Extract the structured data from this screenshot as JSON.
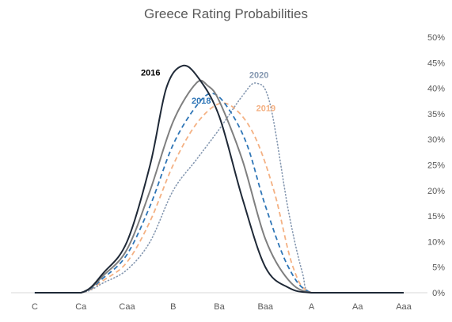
{
  "chart_data": {
    "type": "line",
    "title": "Greece Rating Probabilities",
    "xlabel": "",
    "ylabel": "",
    "categories": [
      "C",
      "Ca",
      "Caa",
      "B",
      "Ba",
      "Baa",
      "A",
      "Aa",
      "Aaa"
    ],
    "y_axis_position": "right",
    "ylim": [
      0,
      0.5
    ],
    "y_ticks": [
      0,
      0.05,
      0.1,
      0.15,
      0.2,
      0.25,
      0.3,
      0.35,
      0.4,
      0.45,
      0.5
    ],
    "y_tick_labels": [
      "0%",
      "5%",
      "10%",
      "15%",
      "20%",
      "25%",
      "30%",
      "35%",
      "40%",
      "45%",
      "50%"
    ],
    "grid": false,
    "legend": "none (series labelled on the lines)",
    "series": [
      {
        "name": "2016",
        "color": "#1f2937",
        "style": "solid",
        "points": [
          [
            0,
            0
          ],
          [
            1,
            0
          ],
          [
            1.5,
            0.04
          ],
          [
            2,
            0.1
          ],
          [
            2.5,
            0.25
          ],
          [
            2.85,
            0.4
          ],
          [
            3.2,
            0.444
          ],
          [
            3.55,
            0.42
          ],
          [
            4,
            0.345
          ],
          [
            4.5,
            0.185
          ],
          [
            5,
            0.05
          ],
          [
            5.5,
            0.01
          ],
          [
            6,
            0
          ],
          [
            7,
            0
          ],
          [
            8,
            0
          ]
        ]
      },
      {
        "name": "",
        "color": "#7f7f7f",
        "style": "solid",
        "points": [
          [
            0,
            0
          ],
          [
            1,
            0
          ],
          [
            1.5,
            0.035
          ],
          [
            2,
            0.085
          ],
          [
            2.5,
            0.2
          ],
          [
            3,
            0.335
          ],
          [
            3.5,
            0.41
          ],
          [
            3.75,
            0.405
          ],
          [
            4,
            0.375
          ],
          [
            4.5,
            0.26
          ],
          [
            5,
            0.105
          ],
          [
            5.5,
            0.025
          ],
          [
            6,
            0
          ],
          [
            7,
            0
          ],
          [
            8,
            0
          ]
        ]
      },
      {
        "name": "2018",
        "color": "#2e75b6",
        "style": "dashed",
        "points": [
          [
            0,
            0
          ],
          [
            1,
            0
          ],
          [
            1.5,
            0.03
          ],
          [
            2,
            0.075
          ],
          [
            2.5,
            0.17
          ],
          [
            3,
            0.29
          ],
          [
            3.5,
            0.365
          ],
          [
            3.85,
            0.39
          ],
          [
            4.2,
            0.36
          ],
          [
            4.6,
            0.29
          ],
          [
            5,
            0.17
          ],
          [
            5.5,
            0.05
          ],
          [
            6,
            0
          ],
          [
            7,
            0
          ],
          [
            8,
            0
          ]
        ]
      },
      {
        "name": "2019",
        "color": "#f4b183",
        "style": "dashed",
        "points": [
          [
            0,
            0
          ],
          [
            1,
            0
          ],
          [
            1.5,
            0.025
          ],
          [
            2,
            0.06
          ],
          [
            2.5,
            0.14
          ],
          [
            3,
            0.25
          ],
          [
            3.5,
            0.33
          ],
          [
            4,
            0.37
          ],
          [
            4.4,
            0.355
          ],
          [
            4.8,
            0.3
          ],
          [
            5.2,
            0.195
          ],
          [
            5.6,
            0.05
          ],
          [
            6,
            0
          ],
          [
            7,
            0
          ],
          [
            8,
            0
          ]
        ]
      },
      {
        "name": "2020",
        "color": "#8497b0",
        "style": "dotted",
        "points": [
          [
            0,
            0
          ],
          [
            1,
            0
          ],
          [
            1.5,
            0.02
          ],
          [
            2,
            0.045
          ],
          [
            2.5,
            0.1
          ],
          [
            3,
            0.2
          ],
          [
            3.5,
            0.26
          ],
          [
            4,
            0.32
          ],
          [
            4.5,
            0.385
          ],
          [
            4.8,
            0.41
          ],
          [
            5.1,
            0.37
          ],
          [
            5.5,
            0.16
          ],
          [
            5.8,
            0.04
          ],
          [
            6,
            0
          ],
          [
            7,
            0
          ],
          [
            8,
            0
          ]
        ]
      }
    ],
    "labels": [
      {
        "text": "2016",
        "x": 2.3,
        "y": 0.425,
        "color": "#000000",
        "bold": true
      },
      {
        "text": "2018",
        "x": 3.4,
        "y": 0.37,
        "color": "#2e75b6",
        "bold": true
      },
      {
        "text": "2019",
        "x": 4.8,
        "y": 0.355,
        "color": "#f4b183",
        "bold": true
      },
      {
        "text": "2020",
        "x": 4.65,
        "y": 0.42,
        "color": "#8497b0",
        "bold": true
      }
    ]
  }
}
